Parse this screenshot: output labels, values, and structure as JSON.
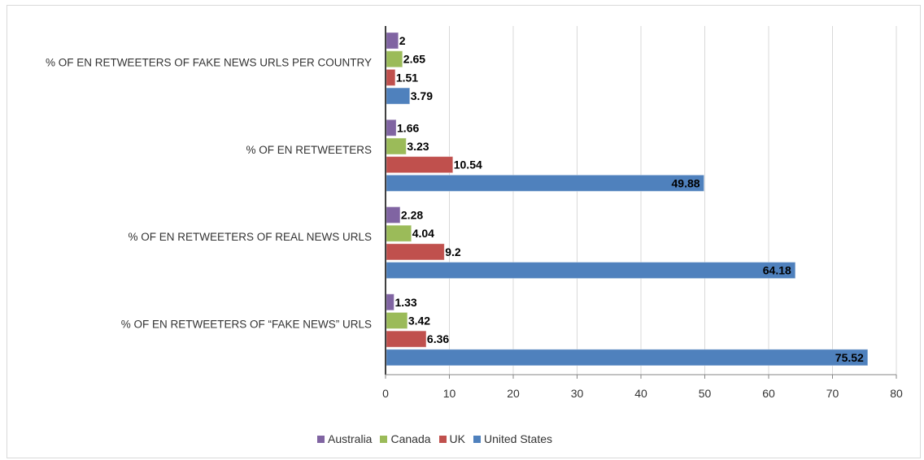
{
  "chart_data": {
    "type": "bar",
    "orientation": "horizontal",
    "title": "",
    "xlabel": "",
    "ylabel": "",
    "xlim": [
      0,
      80
    ],
    "x_ticks": [
      "0",
      "10",
      "20",
      "30",
      "40",
      "50",
      "60",
      "70",
      "80"
    ],
    "grid": "vertical",
    "legend_position": "bottom",
    "categories": [
      "% OF EN RETWEETERS OF FAKE NEWS URLS PER COUNTRY",
      "% OF EN RETWEETERS",
      "% OF EN RETWEETERS OF REAL NEWS URLS",
      "% OF EN RETWEETERS OF “FAKE NEWS” URLS"
    ],
    "series": [
      {
        "name": "Australia",
        "color": "#8064a2",
        "values": [
          2,
          1.66,
          2.28,
          1.33
        ],
        "labels": [
          "2",
          "1.66",
          "2.28",
          "1.33"
        ]
      },
      {
        "name": "Canada",
        "color": "#9bbb59",
        "values": [
          2.65,
          3.23,
          4.04,
          3.42
        ],
        "labels": [
          "2.65",
          "3.23",
          "4.04",
          "3.42"
        ]
      },
      {
        "name": "UK",
        "color": "#c0504d",
        "values": [
          1.51,
          10.54,
          9.2,
          6.36
        ],
        "labels": [
          "1.51",
          "10.54",
          "9.2",
          "6.36"
        ]
      },
      {
        "name": "United States",
        "color": "#4f81bd",
        "values": [
          3.79,
          49.88,
          64.18,
          75.52
        ],
        "labels": [
          "3.79",
          "49.88",
          "64.18",
          "75.52"
        ]
      }
    ]
  }
}
